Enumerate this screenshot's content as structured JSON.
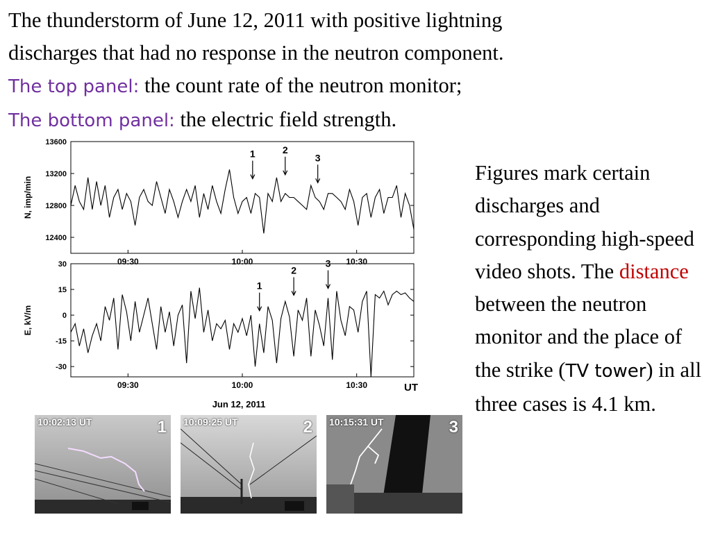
{
  "heading": {
    "line1": "The thunderstorm of June 12, 2011 with positive lightning",
    "line2": "discharges that had no response in the neutron component.",
    "top_label": "The top panel:",
    "top_text": " the count rate of the neutron monitor;",
    "bottom_label": "The bottom panel:",
    "bottom_text": " the electric field strength."
  },
  "side_text": {
    "part1": "Figures mark certain discharges and corresponding high-speed video shots. The ",
    "distance": "distance",
    "part2": " between the neutron monitor and the place of the strike (",
    "tv_tower": "TV tower",
    "part3": ") in all three cases is 4.1 km."
  },
  "colors": {
    "accent_purple": "#7030a0",
    "accent_red": "#c00000"
  },
  "chart_data": [
    {
      "type": "line",
      "panel": "top",
      "ylabel": "N, imp/min",
      "xlabel": "",
      "ylim": [
        12200,
        13600
      ],
      "yticks": [
        12400,
        12800,
        13200,
        13600
      ],
      "xticks": [
        "09:30",
        "10:00",
        "10:30"
      ],
      "x_unit": "minutes after 09:00 UT",
      "xlim": [
        9,
        49
      ],
      "series": [
        {
          "x": [
            9,
            9.5,
            10,
            10.5,
            11,
            11.5,
            12,
            12.5,
            13,
            13.5,
            14,
            14.5,
            15,
            15.5,
            16,
            16.5,
            17,
            17.5,
            18,
            18.5,
            19,
            19.5,
            20,
            20.5,
            21,
            21.5,
            22,
            22.5,
            23,
            23.5,
            24,
            24.5,
            25,
            25.5,
            26,
            26.5,
            27,
            27.5,
            28,
            28.5,
            29,
            29.5,
            30,
            30.5,
            31,
            31.5,
            32,
            32.5,
            33,
            33.5,
            34,
            34.5,
            35,
            35.5,
            36,
            36.5,
            37,
            37.5,
            38,
            38.5,
            39,
            39.5,
            40,
            40.5,
            41,
            41.5,
            42,
            42.5,
            43,
            43.5,
            44,
            44.5,
            45,
            45.5,
            46,
            46.5,
            47,
            47.5,
            48,
            48.5,
            49
          ],
          "values": [
            12800,
            13050,
            12850,
            12750,
            13150,
            12750,
            13100,
            12800,
            13050,
            12650,
            12900,
            13000,
            12750,
            12950,
            12850,
            12550,
            12900,
            13000,
            12850,
            12800,
            13100,
            12900,
            12700,
            13000,
            12850,
            12650,
            12850,
            13000,
            12850,
            13050,
            12650,
            12950,
            12750,
            13050,
            12850,
            12700,
            13000,
            13250,
            12900,
            12700,
            12850,
            12900,
            12700,
            12950,
            12900,
            12450,
            12950,
            12850,
            13150,
            12850,
            12950,
            12900,
            12900,
            12850,
            12800,
            12750,
            13050,
            12900,
            12850,
            12750,
            12950,
            12950,
            12900,
            12850,
            12750,
            13000,
            12850,
            12550,
            12900,
            12950,
            12650,
            12900,
            13000,
            12700,
            12900,
            12900,
            13050,
            12650,
            12950,
            12800,
            12500
          ]
        }
      ],
      "markers": [
        {
          "label": "1",
          "x": 30.2,
          "y": 13100
        },
        {
          "label": "2",
          "x": 34.0,
          "y": 13150
        },
        {
          "label": "3",
          "x": 37.8,
          "y": 13050
        }
      ]
    },
    {
      "type": "line",
      "panel": "bottom",
      "ylabel": "E, kV/m",
      "xlabel": "UT",
      "date_label": "Jun 12, 2011",
      "ylim": [
        -36,
        30
      ],
      "yticks": [
        -30,
        -15,
        0,
        15,
        30
      ],
      "xticks": [
        "09:30",
        "10:00",
        "10:30"
      ],
      "x_unit": "minutes after 09:00 UT",
      "xlim": [
        9,
        49
      ],
      "series": [
        {
          "x": [
            9,
            9.5,
            10,
            10.5,
            11,
            11.5,
            12,
            12.5,
            13,
            13.5,
            14,
            14.5,
            15,
            15.5,
            16,
            16.5,
            17,
            17.5,
            18,
            18.5,
            19,
            19.5,
            20,
            20.5,
            21,
            21.5,
            22,
            22.5,
            23,
            23.5,
            24,
            24.5,
            25,
            25.5,
            26,
            26.5,
            27,
            27.5,
            28,
            28.5,
            29,
            29.5,
            30,
            30.5,
            31,
            31.5,
            32,
            32.5,
            33,
            33.5,
            34,
            34.5,
            35,
            35.5,
            36,
            36.5,
            37,
            37.5,
            38,
            38.5,
            39,
            39.5,
            40,
            40.5,
            41,
            41.5,
            42,
            42.5,
            43,
            43.5,
            44,
            44.5,
            45,
            45.5,
            46,
            46.5,
            47,
            47.5,
            48,
            48.5,
            49
          ],
          "values": [
            -10,
            -5,
            -18,
            -8,
            -22,
            -12,
            -5,
            -15,
            5,
            -3,
            10,
            -20,
            12,
            2,
            -15,
            8,
            -10,
            0,
            10,
            -5,
            -20,
            5,
            -10,
            2,
            -18,
            0,
            6,
            -28,
            14,
            -2,
            16,
            -10,
            3,
            -15,
            -5,
            -8,
            -3,
            -20,
            -5,
            -10,
            -2,
            -12,
            0,
            -30,
            -5,
            -22,
            5,
            -3,
            -28,
            -2,
            8,
            -1,
            -24,
            3,
            -3,
            10,
            -24,
            3,
            -6,
            -18,
            10,
            -26,
            14,
            -3,
            -12,
            5,
            3,
            -10,
            8,
            14,
            -36,
            12,
            10,
            14,
            6,
            12,
            14,
            12,
            13,
            10,
            8
          ]
        }
      ],
      "markers": [
        {
          "label": "1",
          "x": 31.0,
          "y": 1
        },
        {
          "label": "2",
          "x": 35.0,
          "y": 10
        },
        {
          "label": "3",
          "x": 39.0,
          "y": 14
        }
      ]
    }
  ],
  "photos": [
    {
      "time": "10:02:13 UT",
      "number": "1"
    },
    {
      "time": "10:09:25 UT",
      "number": "2"
    },
    {
      "time": "10:15:31 UT",
      "number": "3"
    }
  ]
}
